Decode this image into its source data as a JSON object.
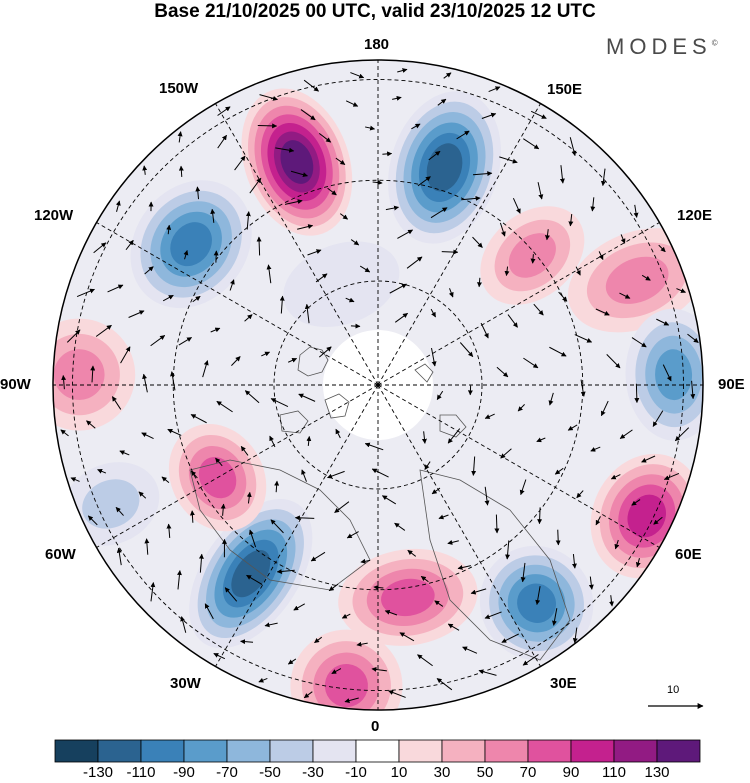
{
  "title": "Base 21/10/2025 00 UTC, valid 23/10/2025 12 UTC",
  "brand": {
    "name": "MODES",
    "mark": "©"
  },
  "longitude_labels": {
    "top": "180",
    "bottom": "0",
    "left": "90W",
    "right": "90E",
    "upper_left_1": "150W",
    "upper_left_2": "120W",
    "upper_right_1": "150E",
    "upper_right_2": "120E",
    "lower_left_1": "60W",
    "lower_left_2": "30W",
    "lower_right_1": "60E",
    "lower_right_2": "30E"
  },
  "reference_vector": {
    "label": "10"
  },
  "colorbar": {
    "ticks": [
      "-130",
      "-110",
      "-90",
      "-70",
      "-50",
      "-30",
      "-10",
      "10",
      "30",
      "50",
      "70",
      "90",
      "110",
      "130"
    ],
    "colors": [
      "#16405e",
      "#2b6390",
      "#3a81b8",
      "#5a9ccb",
      "#8eb7dc",
      "#bccce6",
      "#e4e4f1",
      "#ffffff",
      "#f9d9dc",
      "#f5b1c0",
      "#ee86ac",
      "#e0529e",
      "#c4218e",
      "#921b83",
      "#5e197a"
    ]
  },
  "anomaly_centers": [
    {
      "lon_deg": 163,
      "lat_frac": 0.7,
      "value": -128,
      "rx": 54,
      "ry": 78
    },
    {
      "lon_deg": 200,
      "lat_frac": 0.73,
      "value": 130,
      "rx": 52,
      "ry": 76
    },
    {
      "lon_deg": 233,
      "lat_frac": 0.72,
      "value": -95,
      "rx": 68,
      "ry": 56
    },
    {
      "lon_deg": 130,
      "lat_frac": 0.62,
      "value": 60,
      "rx": 42,
      "ry": 58
    },
    {
      "lon_deg": 112,
      "lat_frac": 0.86,
      "value": 55,
      "rx": 48,
      "ry": 72
    },
    {
      "lon_deg": 92,
      "lat_frac": 0.91,
      "value": -85,
      "rx": 66,
      "ry": 48
    },
    {
      "lon_deg": 64,
      "lat_frac": 0.92,
      "value": 105,
      "rx": 64,
      "ry": 54
    },
    {
      "lon_deg": 36,
      "lat_frac": 0.83,
      "value": -95,
      "rx": 56,
      "ry": 58
    },
    {
      "lon_deg": 8,
      "lat_frac": 0.66,
      "value": 88,
      "rx": 70,
      "ry": 48
    },
    {
      "lon_deg": 354,
      "lat_frac": 0.93,
      "value": 80,
      "rx": 56,
      "ry": 56
    },
    {
      "lon_deg": 326,
      "lat_frac": 0.7,
      "value": -125,
      "rx": 48,
      "ry": 84
    },
    {
      "lon_deg": 300,
      "lat_frac": 0.57,
      "value": 75,
      "rx": 56,
      "ry": 46
    },
    {
      "lon_deg": 268,
      "lat_frac": 0.92,
      "value": 55,
      "rx": 56,
      "ry": 56
    },
    {
      "lon_deg": 294,
      "lat_frac": 0.9,
      "value": -45,
      "rx": 40,
      "ry": 50
    },
    {
      "lon_deg": 200,
      "lat_frac": 0.33,
      "value": -25,
      "rx": 60,
      "ry": 40
    }
  ],
  "colors": {
    "grid": "#000000",
    "coast": "#555555",
    "land": "#cfcfd6",
    "vector": "#000000"
  }
}
